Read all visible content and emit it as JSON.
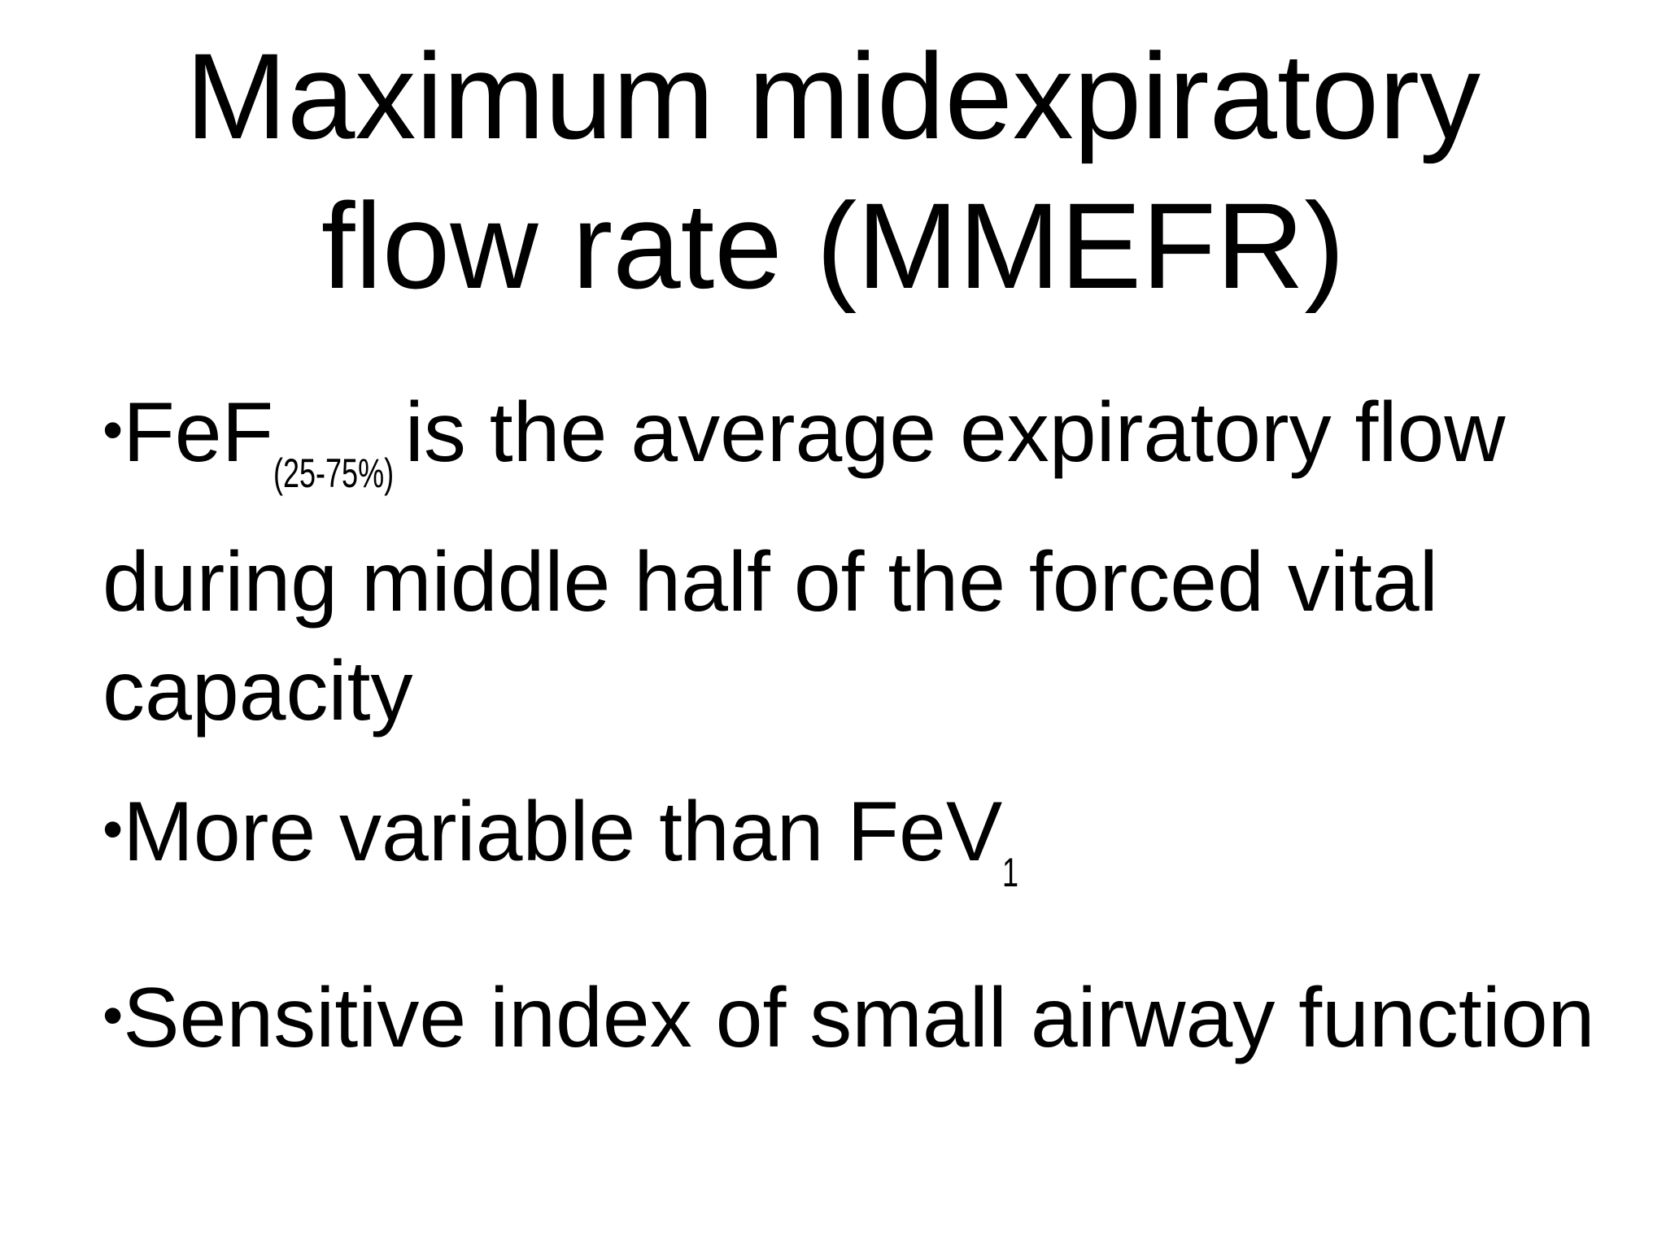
{
  "slide": {
    "title": {
      "line1": "Maximum midexpiratory",
      "line2": "flow rate (MMEFR)"
    },
    "bullets": [
      {
        "marker": "•",
        "lead": "FeF",
        "subscript": "(25-75%)",
        "text": "is the average expiratory flow during middle half of the forced vital capacity"
      },
      {
        "marker": "•",
        "text": "More variable than FeV",
        "subscript": "1"
      },
      {
        "marker": "•",
        "text": "Sensitive index of small airway function"
      }
    ]
  }
}
